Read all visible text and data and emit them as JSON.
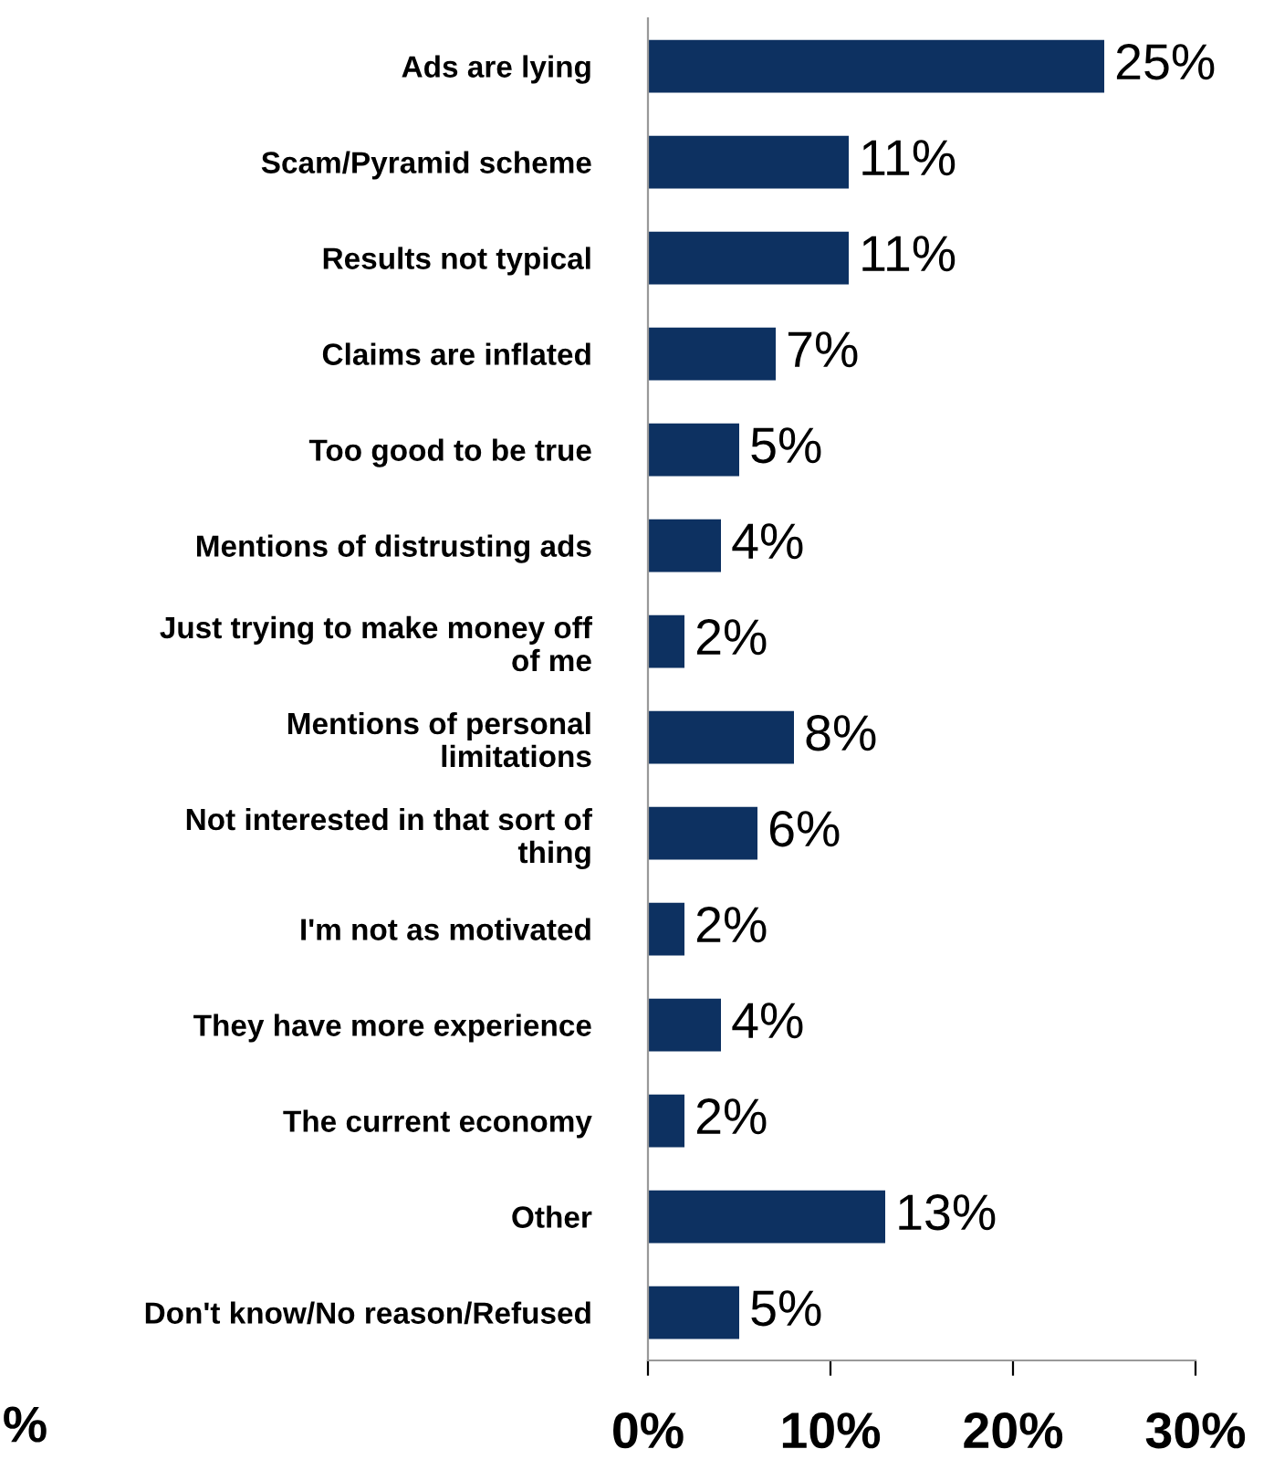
{
  "chart_data": {
    "type": "bar",
    "orientation": "horizontal",
    "categories": [
      "Ads are lying",
      "Scam/Pyramid scheme",
      "Results not typical",
      "Claims are inflated",
      "Too good to be true",
      "Mentions of distrusting ads",
      "Just trying to make money off\nof me",
      "Mentions of personal\nlimitations",
      "Not interested in that sort of\nthing",
      "I'm not as motivated",
      "They have more experience",
      "The current economy",
      "Other",
      "Don't know/No reason/Refused"
    ],
    "values": [
      25,
      11,
      11,
      7,
      5,
      4,
      2,
      8,
      6,
      2,
      4,
      2,
      13,
      5
    ],
    "value_labels": [
      "25%",
      "11%",
      "11%",
      "7%",
      "5%",
      "4%",
      "2%",
      "8%",
      "6%",
      "2%",
      "4%",
      "2%",
      "13%",
      "5%"
    ],
    "color": "#0d3161",
    "xlim": [
      0,
      30
    ],
    "xticks": [
      {
        "value": 0,
        "label": "0%"
      },
      {
        "value": 10,
        "label": "10%"
      },
      {
        "value": 20,
        "label": "20%"
      },
      {
        "value": 30,
        "label": "30%"
      }
    ],
    "grid": false,
    "legend": false,
    "annotations": [
      "%"
    ]
  }
}
